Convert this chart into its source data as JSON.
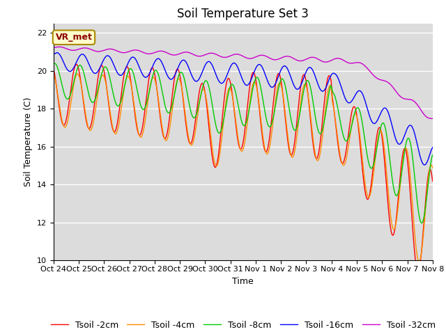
{
  "title": "Soil Temperature Set 3",
  "xlabel": "Time",
  "ylabel": "Soil Temperature (C)",
  "ylim": [
    10,
    22.5
  ],
  "yticks": [
    10,
    12,
    14,
    16,
    18,
    20,
    22
  ],
  "xtick_labels": [
    "Oct 24",
    "Oct 25",
    "Oct 26",
    "Oct 27",
    "Oct 28",
    "Oct 29",
    "Oct 30",
    "Oct 31",
    "Nov 1",
    "Nov 2",
    "Nov 3",
    "Nov 4",
    "Nov 5",
    "Nov 6",
    "Nov 7",
    "Nov 8"
  ],
  "series_colors": [
    "#ff0000",
    "#ff8c00",
    "#00cc00",
    "#0000ff",
    "#cc00cc"
  ],
  "series_labels": [
    "Tsoil -2cm",
    "Tsoil -4cm",
    "Tsoil -8cm",
    "Tsoil -16cm",
    "Tsoil -32cm"
  ],
  "annotation_text": "VR_met",
  "annotation_bg": "#ffffcc",
  "annotation_border": "#aa8800",
  "bg_color": "#dcdcdc",
  "title_fontsize": 12,
  "label_fontsize": 9,
  "tick_fontsize": 8,
  "legend_fontsize": 9,
  "linewidth": 1.0
}
